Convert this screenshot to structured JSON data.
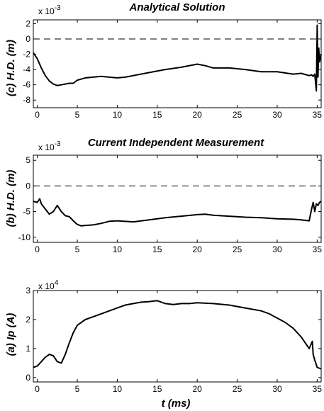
{
  "chart_data": [
    {
      "type": "line",
      "title": "Analytical Solution",
      "ylabel": "(c) H.D. (m)",
      "xlabel": "",
      "multiplier_base": "x 10",
      "multiplier_exp": "-3",
      "xlim": [
        -0.5,
        35.5
      ],
      "ylim": [
        -9,
        2.5
      ],
      "xticks": [
        0,
        5,
        10,
        15,
        20,
        25,
        30,
        35
      ],
      "xtick_labels": [
        "0",
        "5",
        "10",
        "15",
        "20",
        "25",
        "30",
        "35"
      ],
      "yticks": [
        -8,
        -6,
        -4,
        -2,
        0,
        2
      ],
      "ytick_labels": [
        "-8",
        "-6",
        "-4",
        "-2",
        "0",
        "2"
      ],
      "reference_line": 0,
      "series": [
        {
          "x": [
            -0.5,
            0,
            0.5,
            1,
            1.5,
            2,
            2.5,
            3,
            4,
            4.5,
            5,
            6,
            8,
            9,
            10,
            11,
            12,
            14,
            16,
            18,
            20,
            21,
            22,
            24,
            26,
            28,
            30,
            32,
            33,
            34,
            34.3,
            34.5,
            34.7,
            34.9,
            35.0,
            35.1,
            35.2,
            35.3,
            35.5
          ],
          "y": [
            -1.8,
            -2.6,
            -3.8,
            -4.8,
            -5.5,
            -5.9,
            -6.1,
            -6.0,
            -5.8,
            -5.8,
            -5.4,
            -5.1,
            -4.9,
            -5.0,
            -5.1,
            -5.0,
            -4.8,
            -4.4,
            -4.0,
            -3.7,
            -3.3,
            -3.5,
            -3.8,
            -3.8,
            -4.0,
            -4.3,
            -4.3,
            -4.6,
            -4.5,
            -4.8,
            -4.7,
            -4.9,
            -4.6,
            -6.8,
            1.8,
            -5.0,
            -1.2,
            -3.0,
            -2.0
          ]
        }
      ]
    },
    {
      "type": "line",
      "title": "Current Independent Measurement",
      "ylabel": "(b) H.D. (m)",
      "xlabel": "",
      "multiplier_base": "x 10",
      "multiplier_exp": "-3",
      "xlim": [
        -0.5,
        35.5
      ],
      "ylim": [
        -11,
        6
      ],
      "xticks": [
        0,
        5,
        10,
        15,
        20,
        25,
        30,
        35
      ],
      "xtick_labels": [
        "0",
        "5",
        "10",
        "15",
        "20",
        "25",
        "30",
        "35"
      ],
      "yticks": [
        -10,
        -5,
        0,
        5
      ],
      "ytick_labels": [
        "-10",
        "-5",
        "0",
        "5"
      ],
      "reference_line": 0,
      "series": [
        {
          "x": [
            -0.5,
            0,
            0.3,
            0.5,
            1,
            1.5,
            2,
            2.5,
            3,
            3.5,
            4,
            4.5,
            5,
            5.5,
            6,
            7,
            8,
            9,
            10,
            12,
            14,
            16,
            18,
            20,
            21,
            22,
            24,
            26,
            28,
            30,
            32,
            33,
            34,
            34.3,
            34.5,
            34.7,
            34.9,
            35.1,
            35.3,
            35.5
          ],
          "y": [
            -3.0,
            -3.2,
            -2.5,
            -3.5,
            -4.5,
            -5.5,
            -5.0,
            -3.8,
            -5.0,
            -5.8,
            -6.0,
            -6.8,
            -7.5,
            -7.8,
            -7.7,
            -7.6,
            -7.3,
            -6.9,
            -6.8,
            -7.0,
            -6.6,
            -6.2,
            -5.9,
            -5.6,
            -5.5,
            -5.7,
            -5.9,
            -6.1,
            -6.2,
            -6.4,
            -6.5,
            -6.6,
            -6.8,
            -4.5,
            -3.2,
            -5.0,
            -3.5,
            -3.8,
            -3.2,
            -3.0
          ]
        }
      ]
    },
    {
      "type": "line",
      "title": "",
      "ylabel": "(a) Ip (A)",
      "xlabel": "t (ms)",
      "multiplier_base": "x 10",
      "multiplier_exp": "4",
      "xlim": [
        -0.5,
        35.5
      ],
      "ylim": [
        -0.15,
        3.0
      ],
      "xticks": [
        0,
        5,
        10,
        15,
        20,
        25,
        30,
        35
      ],
      "xtick_labels": [
        "0",
        "5",
        "10",
        "15",
        "20",
        "25",
        "30",
        "35"
      ],
      "yticks": [
        0,
        1,
        2,
        3
      ],
      "ytick_labels": [
        "0",
        "1",
        "2",
        "3"
      ],
      "series": [
        {
          "x": [
            -0.5,
            0,
            0.5,
            1,
            1.5,
            2,
            2.5,
            3,
            3.5,
            4,
            4.5,
            5,
            6,
            7,
            8,
            9,
            10,
            11,
            12,
            13,
            14,
            15,
            16,
            17,
            18,
            19,
            20,
            22,
            24,
            26,
            28,
            29,
            30,
            31,
            32,
            33,
            34,
            34.4,
            34.5,
            34.7,
            35,
            35.5
          ],
          "y": [
            0.35,
            0.4,
            0.55,
            0.7,
            0.8,
            0.75,
            0.55,
            0.5,
            0.8,
            1.2,
            1.55,
            1.8,
            2.0,
            2.1,
            2.2,
            2.3,
            2.4,
            2.5,
            2.55,
            2.6,
            2.62,
            2.65,
            2.55,
            2.52,
            2.55,
            2.55,
            2.58,
            2.55,
            2.5,
            2.4,
            2.3,
            2.2,
            2.05,
            1.9,
            1.7,
            1.4,
            1.0,
            1.25,
            0.8,
            0.6,
            0.35,
            0.3
          ]
        }
      ]
    }
  ]
}
